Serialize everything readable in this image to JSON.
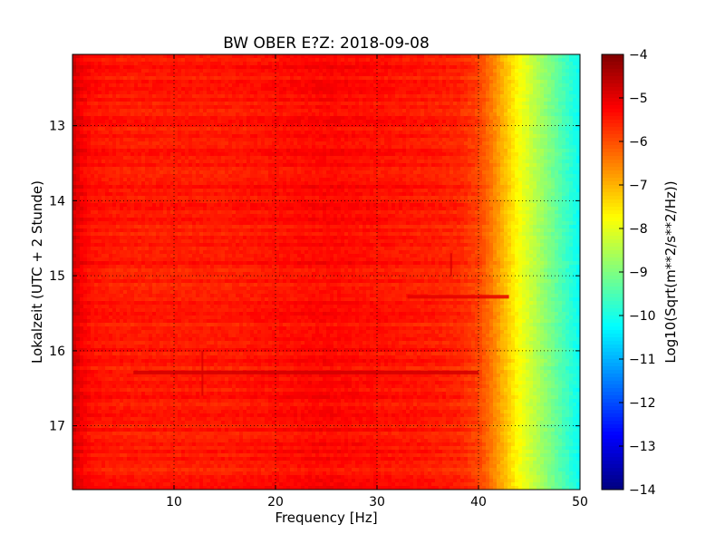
{
  "chart_data": {
    "type": "heatmap",
    "title": "BW OBER E?Z: 2018-09-08",
    "xlabel": "Frequency [Hz]",
    "ylabel": "Lokalzeit (UTC + 2 Stunde)",
    "xlim": [
      0,
      50
    ],
    "ylim": [
      12.05,
      17.85
    ],
    "y_inverted": true,
    "x_ticks": [
      10,
      20,
      30,
      40,
      50
    ],
    "y_ticks": [
      13,
      14,
      15,
      16,
      17
    ],
    "grid": true,
    "colormap": "jet",
    "colorbar": {
      "label": "Log10(Sqrt(m**2/s**2/Hz))",
      "range": [
        -14,
        -4
      ],
      "ticks": [
        -4,
        -5,
        -6,
        -7,
        -8,
        -9,
        -10,
        -11,
        -12,
        -13,
        -14
      ]
    },
    "spectrum_profile": {
      "freq_hz": [
        0,
        1,
        2,
        5,
        10,
        15,
        20,
        25,
        30,
        35,
        38,
        40,
        41,
        42,
        43,
        44,
        45,
        46,
        47,
        48,
        49,
        50
      ],
      "log_amplitude": [
        -4.8,
        -5.2,
        -5.4,
        -5.5,
        -5.5,
        -5.5,
        -5.4,
        -5.3,
        -5.4,
        -5.5,
        -5.6,
        -5.9,
        -6.3,
        -6.8,
        -7.3,
        -7.8,
        -8.2,
        -8.6,
        -9.0,
        -9.4,
        -9.8,
        -10.2
      ]
    },
    "features": [
      {
        "type": "horizontal_streak",
        "time": 16.29,
        "freq_start": 6,
        "freq_end": 40,
        "log_amplitude": -4.8
      },
      {
        "type": "horizontal_streak",
        "time": 15.28,
        "freq_start": 33,
        "freq_end": 43,
        "log_amplitude": -5.0
      },
      {
        "type": "vertical_line",
        "freq": 37.3,
        "time_start": 14.7,
        "time_end": 15.0,
        "log_amplitude": -4.9
      },
      {
        "type": "vertical_line",
        "freq": 12.8,
        "time_start": 16.0,
        "time_end": 16.6,
        "log_amplitude": -4.9
      }
    ]
  }
}
